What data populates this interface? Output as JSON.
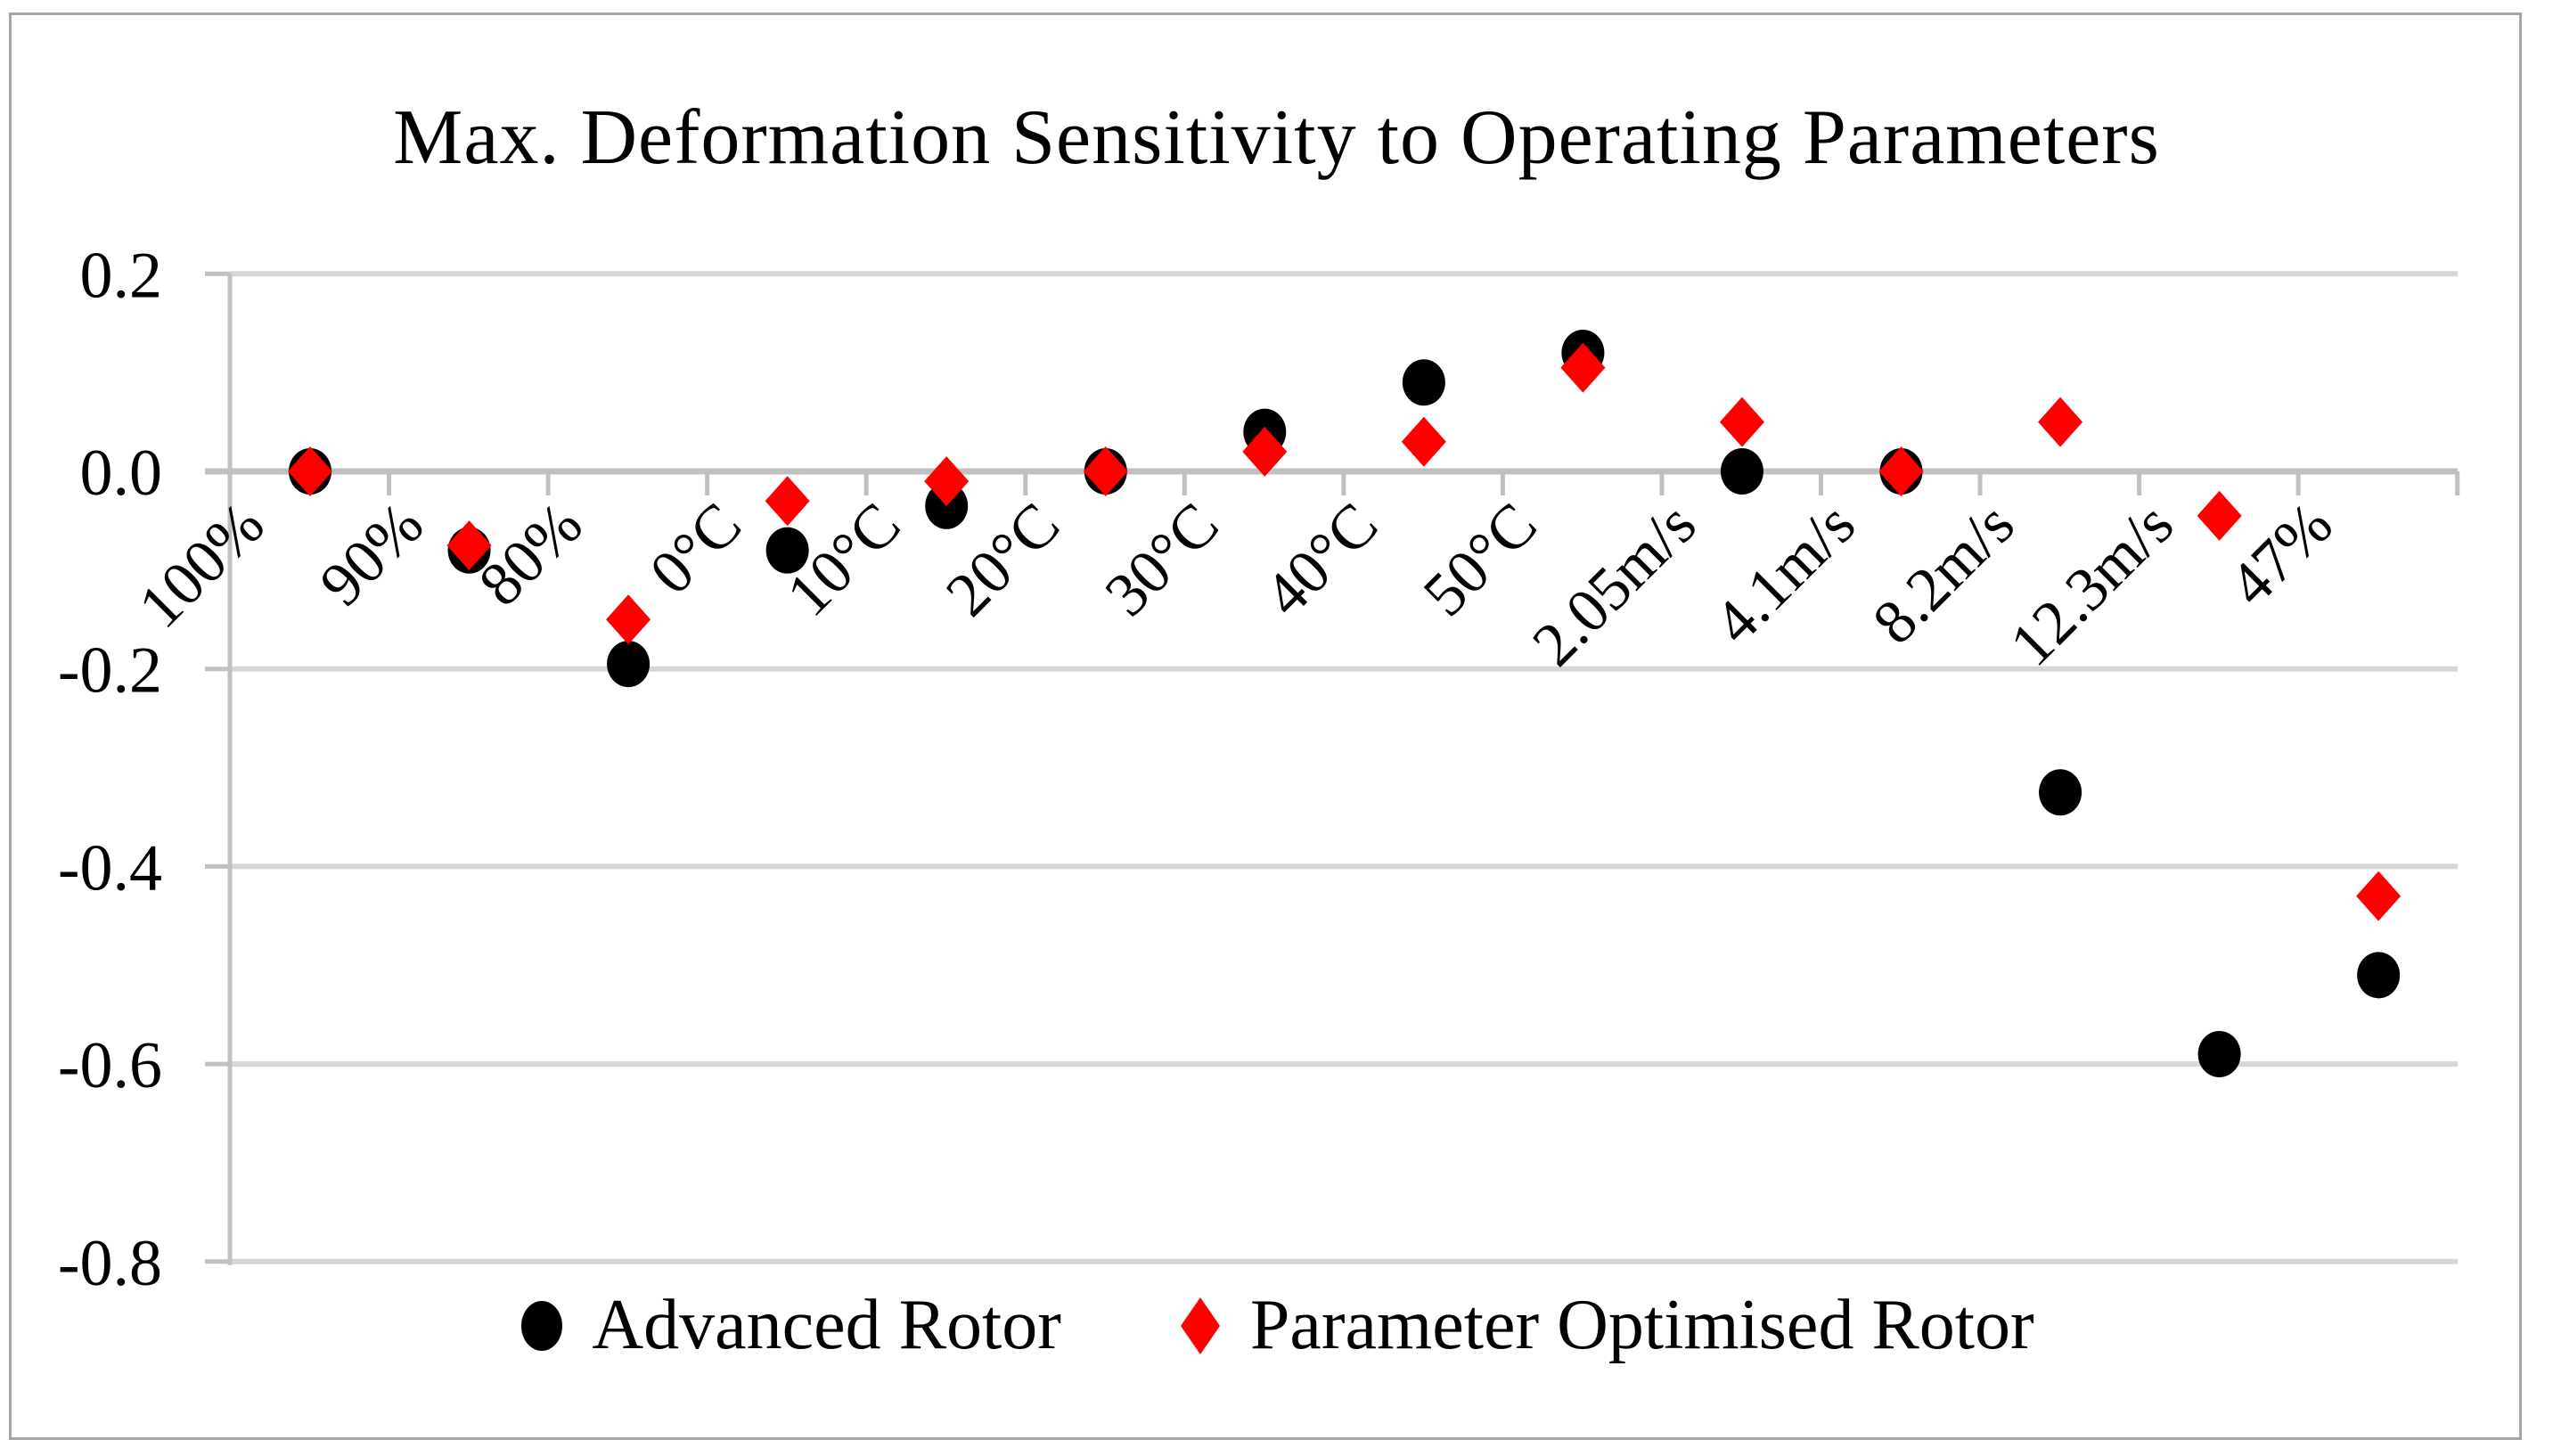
{
  "title": "Max. Deformation Sensitivity to Operating Parameters",
  "legend": {
    "items": [
      {
        "label": "Advanced Rotor",
        "marker": "circle-icon",
        "color": "#000000"
      },
      {
        "label": "Parameter Optimised Rotor",
        "marker": "diamond-icon",
        "color": "#ff0000"
      }
    ]
  },
  "chart_data": {
    "type": "scatter",
    "title": "Max. Deformation Sensitivity to Operating Parameters",
    "categories": [
      "100%",
      "90%",
      "80%",
      "0°C",
      "10°C",
      "20°C",
      "30°C",
      "40°C",
      "50°C",
      "2.05m/s",
      "4.1m/s",
      "8.2m/s",
      "12.3m/s",
      "47%"
    ],
    "series": [
      {
        "name": "Advanced Rotor",
        "marker": "circle",
        "color": "#000000",
        "values": [
          0,
          -0.08,
          -0.195,
          -0.08,
          -0.035,
          0,
          0.04,
          0.09,
          0.12,
          0,
          0,
          -0.325,
          -0.59,
          -0.51
        ]
      },
      {
        "name": "Parameter Optimised Rotor",
        "marker": "diamond",
        "color": "#ff0000",
        "values": [
          0,
          -0.075,
          -0.15,
          -0.03,
          -0.01,
          0,
          0.02,
          0.03,
          0.105,
          0.05,
          0,
          0.05,
          -0.045,
          -0.43
        ]
      }
    ],
    "xlabel": "",
    "ylabel": "",
    "ylim": [
      -0.8,
      0.2
    ],
    "ytick_step": 0.2,
    "yticklabels": [
      "0.2",
      "0.0",
      "-0.2",
      "-0.4",
      "-0.6",
      "-0.8"
    ],
    "grid": true,
    "legend_position": "bottom",
    "category_labels_rotation_deg": 45,
    "colors": {
      "background": "#ffffff",
      "gridline": "#d6d6d6",
      "axis": "#c0c0c0",
      "border": "#a6a6a6",
      "text": "#000000"
    }
  }
}
